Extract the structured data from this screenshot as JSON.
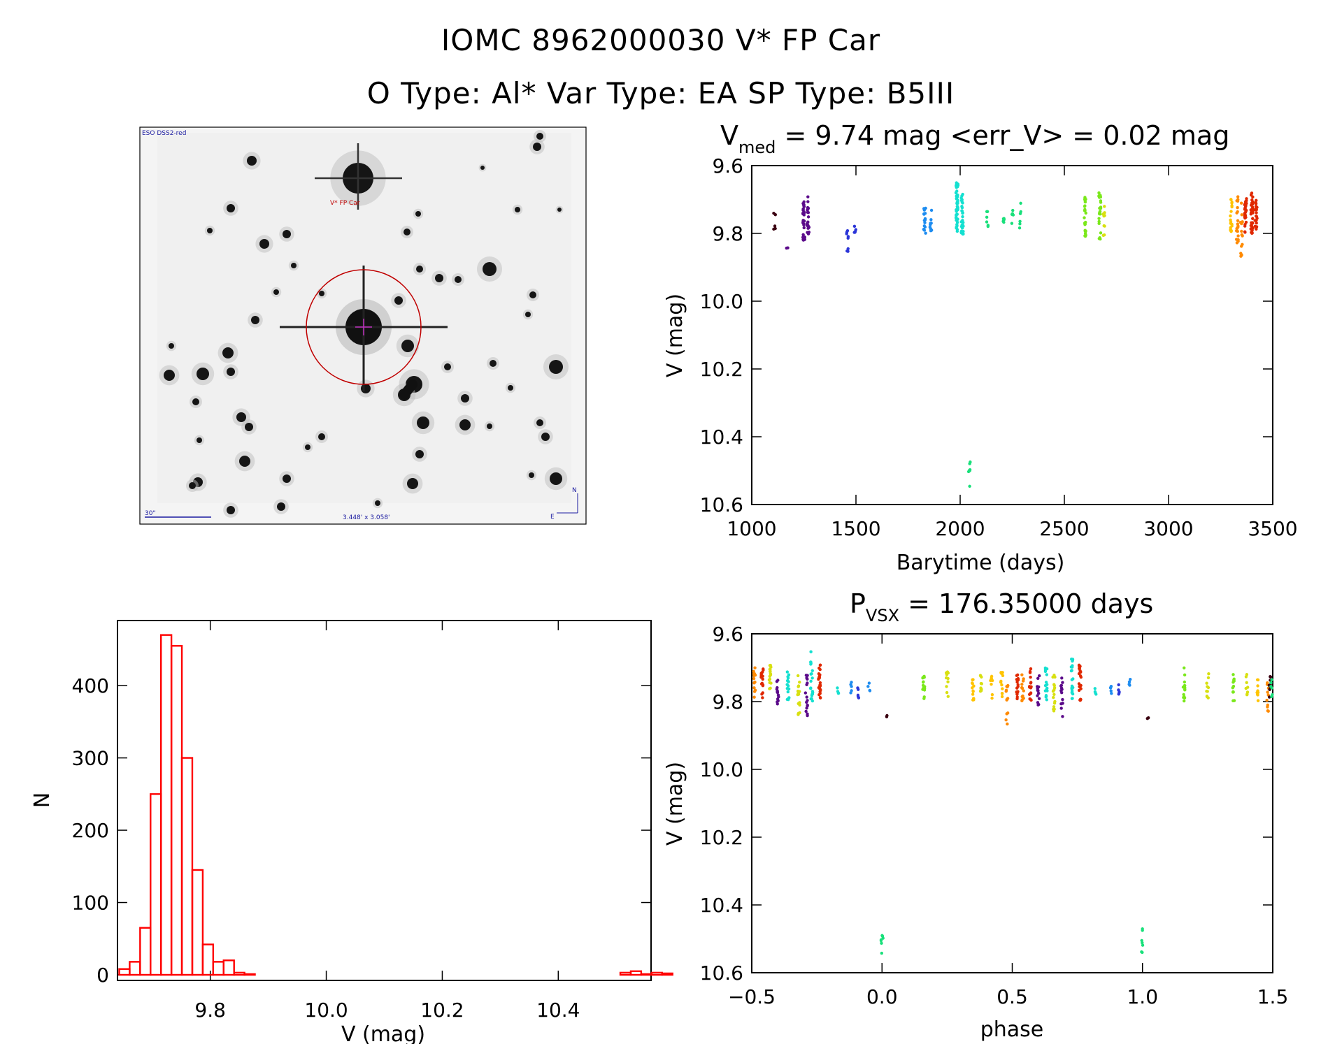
{
  "header": {
    "line1": "IOMC 8962000030    V* FP Car",
    "line2": "O Type: Al*  Var Type: EA  SP Type: B5III"
  },
  "image_panel": {
    "top_left_label": "ESO DSS2-red",
    "target_label": "V* FP Car",
    "scale_label": "30\"",
    "size_label": "3.448' x 3.058'",
    "north": "N",
    "east": "E"
  },
  "colors": {
    "histogram": "#ff0000",
    "aperture": "#c00000",
    "series": [
      "#3a0010",
      "#5b0a8a",
      "#2b35d8",
      "#1d8cf0",
      "#14e0d0",
      "#18e07a",
      "#7ae81a",
      "#d8e010",
      "#ffc400",
      "#ff8a00",
      "#e02800"
    ]
  },
  "chart_data": [
    {
      "id": "lightcurve",
      "type": "scatter",
      "title": "V_med = 9.74 mag <err_V> = 0.02 mag",
      "title_main": "V",
      "title_sub": "med",
      "title_rest": " = 9.74 mag <err_V> = 0.02 mag",
      "xlabel": "Barytime (days)",
      "ylabel": "V (mag)",
      "xlim": [
        1000,
        3500
      ],
      "ylim": [
        9.6,
        10.6
      ],
      "y_inverted": true,
      "xticks": [
        1000,
        1500,
        2000,
        2500,
        3000,
        3500
      ],
      "xtick_labels": [
        "1000",
        "1500",
        "2000",
        "2500",
        "3000",
        "3500"
      ],
      "yticks": [
        9.6,
        9.8,
        10.0,
        10.2,
        10.4,
        10.6
      ],
      "ytick_labels": [
        "9.6",
        "9.8",
        "10.0",
        "10.2",
        "10.4",
        "10.6"
      ],
      "clusters": [
        {
          "x": 1110,
          "y": [
            9.74,
            9.79
          ],
          "n": 5,
          "color": 0
        },
        {
          "x": 1170,
          "y": [
            9.84,
            9.85
          ],
          "n": 2,
          "color": 1
        },
        {
          "x": 1250,
          "y": [
            9.7,
            9.82
          ],
          "n": 30,
          "color": 1
        },
        {
          "x": 1270,
          "y": [
            9.69,
            9.81
          ],
          "n": 22,
          "color": 1
        },
        {
          "x": 1460,
          "y": [
            9.79,
            9.86
          ],
          "n": 8,
          "color": 2
        },
        {
          "x": 1495,
          "y": [
            9.77,
            9.8
          ],
          "n": 6,
          "color": 2
        },
        {
          "x": 1830,
          "y": [
            9.72,
            9.8
          ],
          "n": 16,
          "color": 3
        },
        {
          "x": 1860,
          "y": [
            9.73,
            9.8
          ],
          "n": 10,
          "color": 3
        },
        {
          "x": 1985,
          "y": [
            9.65,
            9.8
          ],
          "n": 50,
          "color": 4
        },
        {
          "x": 2010,
          "y": [
            9.68,
            9.81
          ],
          "n": 28,
          "color": 4
        },
        {
          "x": 2045,
          "y": [
            10.47,
            10.55
          ],
          "n": 7,
          "color": 5
        },
        {
          "x": 2130,
          "y": [
            9.73,
            9.78
          ],
          "n": 6,
          "color": 5
        },
        {
          "x": 2210,
          "y": [
            9.75,
            9.78
          ],
          "n": 5,
          "color": 5
        },
        {
          "x": 2250,
          "y": [
            9.73,
            9.79
          ],
          "n": 5,
          "color": 5
        },
        {
          "x": 2290,
          "y": [
            9.71,
            9.79
          ],
          "n": 6,
          "color": 5
        },
        {
          "x": 2600,
          "y": [
            9.69,
            9.81
          ],
          "n": 26,
          "color": 6
        },
        {
          "x": 2670,
          "y": [
            9.68,
            9.82
          ],
          "n": 24,
          "color": 6
        },
        {
          "x": 2690,
          "y": [
            9.72,
            9.81
          ],
          "n": 10,
          "color": 7
        },
        {
          "x": 3300,
          "y": [
            9.69,
            9.8
          ],
          "n": 18,
          "color": 8
        },
        {
          "x": 3330,
          "y": [
            9.69,
            9.83
          ],
          "n": 22,
          "color": 9
        },
        {
          "x": 3350,
          "y": [
            9.71,
            9.87
          ],
          "n": 16,
          "color": 9
        },
        {
          "x": 3370,
          "y": [
            9.69,
            9.8
          ],
          "n": 30,
          "color": 10
        },
        {
          "x": 3400,
          "y": [
            9.68,
            9.81
          ],
          "n": 35,
          "color": 10
        },
        {
          "x": 3420,
          "y": [
            9.69,
            9.79
          ],
          "n": 22,
          "color": 10
        }
      ]
    },
    {
      "id": "histogram",
      "type": "bar",
      "title": "",
      "xlabel": "V (mag)",
      "ylabel": "N",
      "xlim": [
        9.64,
        10.56
      ],
      "ylim": [
        0,
        490
      ],
      "xticks": [
        9.8,
        10.0,
        10.2,
        10.4
      ],
      "xtick_labels": [
        "9.8",
        "10.0",
        "10.2",
        "10.4"
      ],
      "yticks": [
        0,
        100,
        200,
        300,
        400
      ],
      "ytick_labels": [
        "0",
        "100",
        "200",
        "300",
        "400"
      ],
      "bin_width": 0.018,
      "bin_start": 9.643,
      "counts": [
        8,
        18,
        65,
        250,
        470,
        455,
        300,
        145,
        42,
        18,
        20,
        3,
        1,
        0,
        0,
        0,
        0,
        0,
        0,
        0,
        0,
        0,
        0,
        0,
        0,
        0,
        0,
        0,
        0,
        0,
        0,
        0,
        0,
        0,
        0,
        0,
        0,
        0,
        0,
        0,
        0,
        0,
        0,
        0,
        0,
        0,
        0,
        0,
        3,
        5,
        1,
        3,
        2
      ]
    },
    {
      "id": "phased",
      "type": "scatter",
      "title": "P_vsx = 176.35000 days",
      "title_main": "P",
      "title_sub": "VSX",
      "title_rest": " = 176.35000 days",
      "xlabel": "phase",
      "ylabel": "V (mag)",
      "xlim": [
        -0.5,
        1.5
      ],
      "ylim": [
        9.6,
        10.6
      ],
      "y_inverted": true,
      "xticks": [
        -0.5,
        0.0,
        0.5,
        1.0,
        1.5
      ],
      "xtick_labels": [
        "−0.5",
        "0.0",
        "0.5",
        "1.0",
        "1.5"
      ],
      "yticks": [
        9.6,
        9.8,
        10.0,
        10.2,
        10.4,
        10.6
      ],
      "ytick_labels": [
        "9.6",
        "9.8",
        "10.0",
        "10.2",
        "10.4",
        "10.6"
      ],
      "period_days": 176.35,
      "clusters": [
        {
          "x": 0.0,
          "y": [
            10.47,
            10.55
          ],
          "n": 7,
          "color": 5
        },
        {
          "x": 1.0,
          "y": [
            10.47,
            10.55
          ],
          "n": 7,
          "color": 5
        },
        {
          "x": 0.02,
          "y": [
            9.84,
            9.85
          ],
          "n": 2,
          "color": 0
        },
        {
          "x": 1.02,
          "y": [
            9.84,
            9.85
          ],
          "n": 2,
          "color": 0
        },
        {
          "x": -0.49,
          "y": [
            9.7,
            9.8
          ],
          "n": 14,
          "color": 9
        },
        {
          "x": -0.46,
          "y": [
            9.69,
            9.79
          ],
          "n": 16,
          "color": 10
        },
        {
          "x": -0.43,
          "y": [
            9.69,
            9.78
          ],
          "n": 16,
          "color": 7
        },
        {
          "x": -0.4,
          "y": [
            9.72,
            9.81
          ],
          "n": 14,
          "color": 1
        },
        {
          "x": -0.36,
          "y": [
            9.7,
            9.8
          ],
          "n": 16,
          "color": 4
        },
        {
          "x": -0.32,
          "y": [
            9.72,
            9.84
          ],
          "n": 16,
          "color": 7
        },
        {
          "x": -0.29,
          "y": [
            9.72,
            9.85
          ],
          "n": 16,
          "color": 1
        },
        {
          "x": -0.27,
          "y": [
            9.65,
            9.8
          ],
          "n": 22,
          "color": 4
        },
        {
          "x": -0.24,
          "y": [
            9.69,
            9.8
          ],
          "n": 26,
          "color": 10
        },
        {
          "x": -0.17,
          "y": [
            9.75,
            9.78
          ],
          "n": 4,
          "color": 4
        },
        {
          "x": -0.12,
          "y": [
            9.74,
            9.78
          ],
          "n": 5,
          "color": 3
        },
        {
          "x": -0.09,
          "y": [
            9.75,
            9.79
          ],
          "n": 5,
          "color": 2
        },
        {
          "x": -0.05,
          "y": [
            9.73,
            9.77
          ],
          "n": 4,
          "color": 3
        },
        {
          "x": 0.16,
          "y": [
            9.7,
            9.8
          ],
          "n": 14,
          "color": 6
        },
        {
          "x": 0.25,
          "y": [
            9.71,
            9.8
          ],
          "n": 10,
          "color": 7
        },
        {
          "x": 0.35,
          "y": [
            9.71,
            9.8
          ],
          "n": 14,
          "color": 8
        },
        {
          "x": 0.38,
          "y": [
            9.72,
            9.78
          ],
          "n": 10,
          "color": 7
        },
        {
          "x": 0.42,
          "y": [
            9.72,
            9.79
          ],
          "n": 8,
          "color": 8
        },
        {
          "x": 0.46,
          "y": [
            9.71,
            9.8
          ],
          "n": 12,
          "color": 8
        },
        {
          "x": 0.48,
          "y": [
            9.75,
            9.87
          ],
          "n": 12,
          "color": 9
        },
        {
          "x": 0.52,
          "y": [
            9.71,
            9.8
          ],
          "n": 16,
          "color": 10
        },
        {
          "x": 0.54,
          "y": [
            9.72,
            9.8
          ],
          "n": 14,
          "color": 9
        },
        {
          "x": 0.57,
          "y": [
            9.7,
            9.8
          ],
          "n": 16,
          "color": 10
        },
        {
          "x": 0.6,
          "y": [
            9.72,
            9.81
          ],
          "n": 14,
          "color": 1
        },
        {
          "x": 0.63,
          "y": [
            9.7,
            9.8
          ],
          "n": 16,
          "color": 4
        },
        {
          "x": 0.66,
          "y": [
            9.72,
            9.83
          ],
          "n": 16,
          "color": 7
        },
        {
          "x": 0.69,
          "y": [
            9.73,
            9.85
          ],
          "n": 14,
          "color": 1
        },
        {
          "x": 0.73,
          "y": [
            9.66,
            9.8
          ],
          "n": 22,
          "color": 4
        },
        {
          "x": 0.76,
          "y": [
            9.69,
            9.8
          ],
          "n": 22,
          "color": 10
        },
        {
          "x": 0.82,
          "y": [
            9.75,
            9.78
          ],
          "n": 4,
          "color": 4
        },
        {
          "x": 0.88,
          "y": [
            9.74,
            9.78
          ],
          "n": 5,
          "color": 3
        },
        {
          "x": 0.91,
          "y": [
            9.75,
            9.79
          ],
          "n": 5,
          "color": 2
        },
        {
          "x": 0.95,
          "y": [
            9.73,
            9.77
          ],
          "n": 4,
          "color": 3
        },
        {
          "x": 1.16,
          "y": [
            9.7,
            9.8
          ],
          "n": 14,
          "color": 6
        },
        {
          "x": 1.25,
          "y": [
            9.71,
            9.8
          ],
          "n": 10,
          "color": 7
        },
        {
          "x": 1.35,
          "y": [
            9.71,
            9.8
          ],
          "n": 12,
          "color": 6
        },
        {
          "x": 1.4,
          "y": [
            9.72,
            9.79
          ],
          "n": 8,
          "color": 7
        },
        {
          "x": 1.44,
          "y": [
            9.71,
            9.8
          ],
          "n": 10,
          "color": 8
        },
        {
          "x": 1.48,
          "y": [
            9.74,
            9.83
          ],
          "n": 10,
          "color": 9
        },
        {
          "x": 1.49,
          "y": [
            9.72,
            9.8
          ],
          "n": 8,
          "color": 0
        },
        {
          "x": 1.495,
          "y": [
            9.73,
            9.8
          ],
          "n": 6,
          "color": 5
        }
      ]
    }
  ]
}
